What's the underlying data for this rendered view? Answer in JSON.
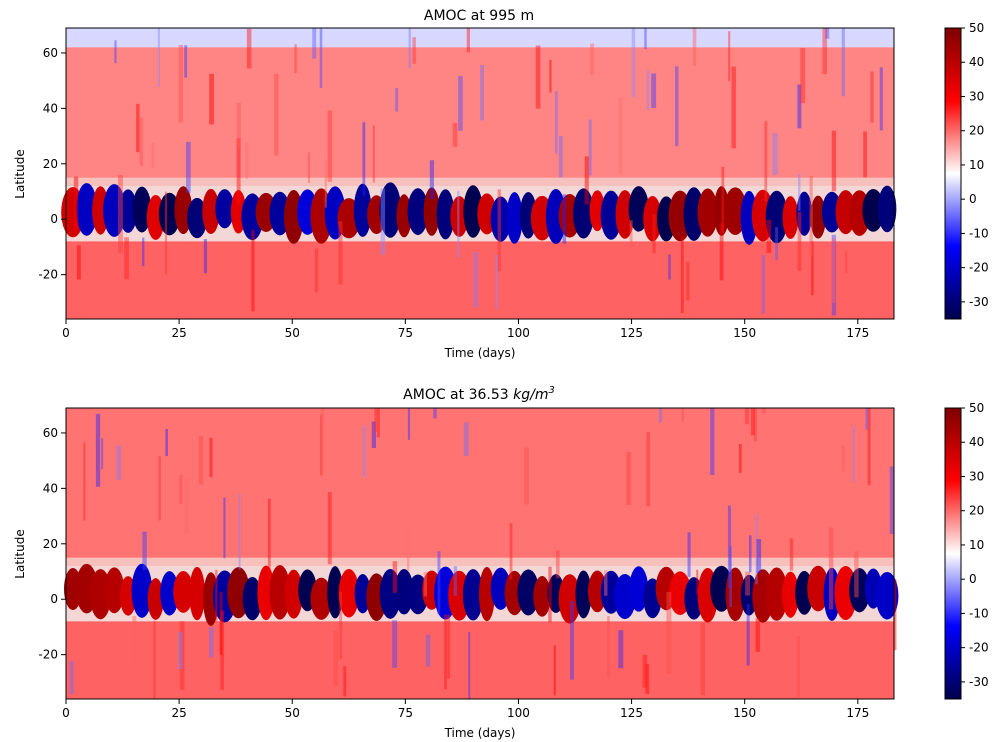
{
  "figure": {
    "colormap": "seismic",
    "colormap_stops": [
      "#00004c",
      "#0000ff",
      "#ffffff",
      "#ff0000",
      "#7f0000"
    ]
  },
  "chart_data": [
    {
      "type": "heatmap",
      "title": "AMOC at 995 m",
      "title_unit": "",
      "xlabel": "Time (days)",
      "ylabel": "Latitude",
      "xlim": [
        0,
        183
      ],
      "ylim": [
        -36,
        69
      ],
      "xticks": [
        0,
        25,
        50,
        75,
        100,
        125,
        150,
        175
      ],
      "yticks": [
        -20,
        0,
        20,
        40,
        60
      ],
      "colorbar": {
        "vmin": -35,
        "vmax": 50,
        "ticks": [
          -30,
          -20,
          -10,
          0,
          10,
          20,
          30,
          40,
          50
        ]
      },
      "latitude_bands": [
        {
          "lat_range": [
            62,
            69
          ],
          "typical_value": -5,
          "note": "weak negative (light blue)"
        },
        {
          "lat_range": [
            15,
            62
          ],
          "typical_value": 22,
          "note": "positive (light red)"
        },
        {
          "lat_range": [
            -8,
            12
          ],
          "typical_value": 0,
          "note": "alternating strong positive/negative cells, range about -35 to 50"
        },
        {
          "lat_range": [
            -36,
            -8
          ],
          "typical_value": 28,
          "note": "positive (red)"
        }
      ]
    },
    {
      "type": "heatmap",
      "title": "AMOC at 36.53 ",
      "title_unit": "kg/m",
      "title_unit_exponent": "3",
      "xlabel": "Time (days)",
      "ylabel": "Latitude",
      "xlim": [
        0,
        183
      ],
      "ylim": [
        -36,
        69
      ],
      "xticks": [
        0,
        25,
        50,
        75,
        100,
        125,
        150,
        175
      ],
      "yticks": [
        -20,
        0,
        20,
        40,
        60
      ],
      "colorbar": {
        "vmin": -35,
        "vmax": 50,
        "ticks": [
          -30,
          -20,
          -10,
          0,
          10,
          20,
          30,
          40,
          50
        ]
      },
      "latitude_bands": [
        {
          "lat_range": [
            15,
            69
          ],
          "typical_value": 25,
          "note": "positive (light red), stronger near 60"
        },
        {
          "lat_range": [
            -8,
            12
          ],
          "typical_value": 0,
          "note": "alternating strong positive/negative cells, range about -35 to 50"
        },
        {
          "lat_range": [
            -36,
            -8
          ],
          "typical_value": 28,
          "note": "positive (red)"
        }
      ]
    }
  ]
}
